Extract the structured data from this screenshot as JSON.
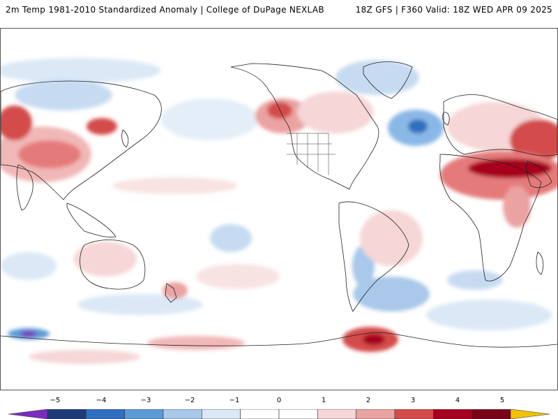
{
  "header": {
    "title_left": "2m Temp 1981-2010 Standardized Anomaly | College of DuPage NEXLAB",
    "title_right": "18Z GFS | F360 Valid: 18Z WED APR 09 2025"
  },
  "colorbar": {
    "labels": [
      "−5",
      "−4",
      "−3",
      "−2",
      "−1",
      "0",
      "1",
      "2",
      "3",
      "4",
      "5"
    ],
    "colors": [
      "#7b2cbf",
      "#1f3a78",
      "#2f6fbf",
      "#5b9bd5",
      "#a9c8ea",
      "#dbe8f6",
      "#ffffff",
      "#ffffff",
      "#f6d6d6",
      "#eba2a2",
      "#d44b4b",
      "#a5001f",
      "#7a0018",
      "#f2c200"
    ]
  }
}
